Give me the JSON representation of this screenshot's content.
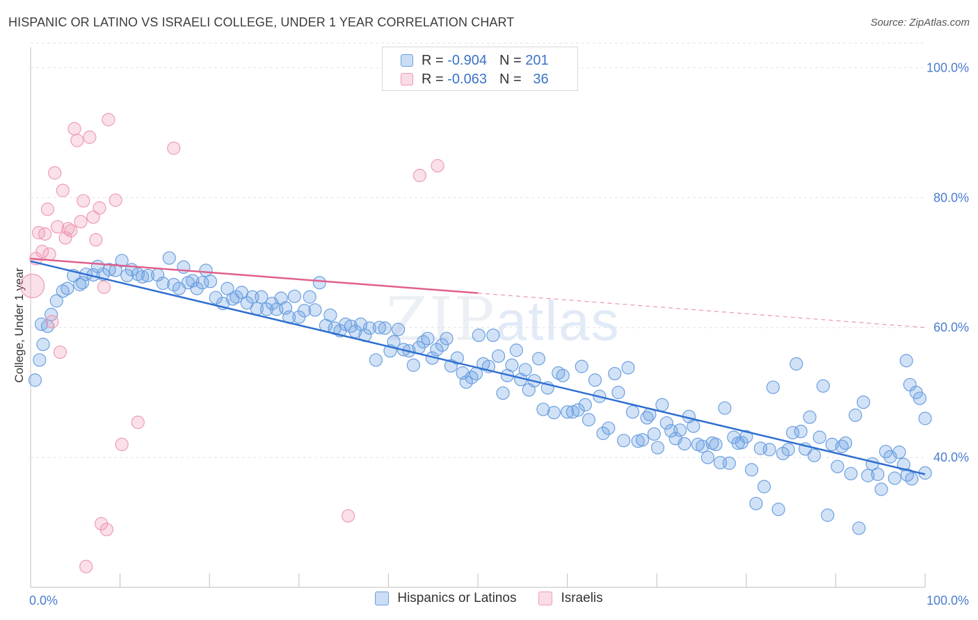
{
  "title": "HISPANIC OR LATINO VS ISRAELI COLLEGE, UNDER 1 YEAR CORRELATION CHART",
  "source": "Source: ZipAtlas.com",
  "watermark": {
    "part1": "ZIP",
    "part2": "atlas"
  },
  "legend": {
    "rows": [
      {
        "r_label": "R =",
        "r_value": "-0.904",
        "n_label": "N =",
        "n_value": "201",
        "color": "#6b9fe0"
      },
      {
        "r_label": "R =",
        "r_value": "-0.063",
        "n_label": "N =",
        "n_value": "36",
        "color": "#f09ab5"
      }
    ]
  },
  "chart_data": {
    "type": "scatter",
    "title": "HISPANIC OR LATINO VS ISRAELI COLLEGE, UNDER 1 YEAR CORRELATION CHART",
    "xlabel": "",
    "ylabel": "College, Under 1 year",
    "xlim": [
      0,
      100
    ],
    "ylim": [
      20,
      104
    ],
    "x_tick_labels": [
      "0.0%",
      "100.0%"
    ],
    "y_ticks": [
      40,
      60,
      80,
      100
    ],
    "y_tick_labels": [
      "40.0%",
      "60.0%",
      "80.0%",
      "100.0%"
    ],
    "grid": true,
    "legend_placement": "bottom-center",
    "series": [
      {
        "name": "Hispanics or Latinos",
        "color": "#6b9fe0",
        "trend": {
          "x": [
            0,
            100
          ],
          "y": [
            70.2,
            37.4
          ],
          "style": "solid"
        },
        "points": [
          [
            0.5,
            51.9
          ],
          [
            1.0,
            55.0
          ],
          [
            1.4,
            57.4
          ],
          [
            1.9,
            60.2
          ],
          [
            2.3,
            62.0
          ],
          [
            2.9,
            64.1
          ],
          [
            3.6,
            65.6
          ],
          [
            4.1,
            66.0
          ],
          [
            4.8,
            68.0
          ],
          [
            5.5,
            66.6
          ],
          [
            5.8,
            66.9
          ],
          [
            6.2,
            68.2
          ],
          [
            7.0,
            68.1
          ],
          [
            7.5,
            69.4
          ],
          [
            8.1,
            68.2
          ],
          [
            8.8,
            68.9
          ],
          [
            9.5,
            68.8
          ],
          [
            10.2,
            70.3
          ],
          [
            10.8,
            68.0
          ],
          [
            11.3,
            68.9
          ],
          [
            12.0,
            68.2
          ],
          [
            12.5,
            67.8
          ],
          [
            13.1,
            68.0
          ],
          [
            14.2,
            68.1
          ],
          [
            14.8,
            66.8
          ],
          [
            15.5,
            70.7
          ],
          [
            16.0,
            66.6
          ],
          [
            16.6,
            66.0
          ],
          [
            17.1,
            69.3
          ],
          [
            17.6,
            66.9
          ],
          [
            18.1,
            67.2
          ],
          [
            18.6,
            66.0
          ],
          [
            19.2,
            66.9
          ],
          [
            19.6,
            68.8
          ],
          [
            20.1,
            67.1
          ],
          [
            20.7,
            64.6
          ],
          [
            21.5,
            63.7
          ],
          [
            22.0,
            66.0
          ],
          [
            22.6,
            64.4
          ],
          [
            23.0,
            64.7
          ],
          [
            23.6,
            65.4
          ],
          [
            24.2,
            63.8
          ],
          [
            24.8,
            64.7
          ],
          [
            25.3,
            62.9
          ],
          [
            25.8,
            64.7
          ],
          [
            26.4,
            62.8
          ],
          [
            27.0,
            63.7
          ],
          [
            27.5,
            62.8
          ],
          [
            28.0,
            64.5
          ],
          [
            28.5,
            63.0
          ],
          [
            28.9,
            61.6
          ],
          [
            29.5,
            64.8
          ],
          [
            30.0,
            61.6
          ],
          [
            30.6,
            62.6
          ],
          [
            31.2,
            64.7
          ],
          [
            31.8,
            62.7
          ],
          [
            32.3,
            66.9
          ],
          [
            33.0,
            60.3
          ],
          [
            33.5,
            61.9
          ],
          [
            34.0,
            59.9
          ],
          [
            34.6,
            59.5
          ],
          [
            35.2,
            60.5
          ],
          [
            35.8,
            60.2
          ],
          [
            36.3,
            59.4
          ],
          [
            36.9,
            60.5
          ],
          [
            37.4,
            58.8
          ],
          [
            37.9,
            59.9
          ],
          [
            38.6,
            55.0
          ],
          [
            39.0,
            60.0
          ],
          [
            39.6,
            59.9
          ],
          [
            40.2,
            56.4
          ],
          [
            40.6,
            57.8
          ],
          [
            41.1,
            59.7
          ],
          [
            41.7,
            56.6
          ],
          [
            42.3,
            56.4
          ],
          [
            42.8,
            54.2
          ],
          [
            43.4,
            56.9
          ],
          [
            43.9,
            57.8
          ],
          [
            44.4,
            58.3
          ],
          [
            44.9,
            55.3
          ],
          [
            45.4,
            56.6
          ],
          [
            46.0,
            57.3
          ],
          [
            46.5,
            58.3
          ],
          [
            47.0,
            54.1
          ],
          [
            47.7,
            55.3
          ],
          [
            48.3,
            53.0
          ],
          [
            48.7,
            51.6
          ],
          [
            49.3,
            52.3
          ],
          [
            49.8,
            52.9
          ],
          [
            50.1,
            58.8
          ],
          [
            50.6,
            54.4
          ],
          [
            51.2,
            54.0
          ],
          [
            51.7,
            58.8
          ],
          [
            52.3,
            55.6
          ],
          [
            52.8,
            49.9
          ],
          [
            53.3,
            52.6
          ],
          [
            53.8,
            54.2
          ],
          [
            54.3,
            56.5
          ],
          [
            54.8,
            52.0
          ],
          [
            55.3,
            53.5
          ],
          [
            55.7,
            50.4
          ],
          [
            56.3,
            51.8
          ],
          [
            56.8,
            55.2
          ],
          [
            57.3,
            47.4
          ],
          [
            57.8,
            50.7
          ],
          [
            58.5,
            46.9
          ],
          [
            59.0,
            53.0
          ],
          [
            59.5,
            52.6
          ],
          [
            60.0,
            47.0
          ],
          [
            60.6,
            47.0
          ],
          [
            61.2,
            47.3
          ],
          [
            61.6,
            54.0
          ],
          [
            62.0,
            48.1
          ],
          [
            62.4,
            45.8
          ],
          [
            63.1,
            51.9
          ],
          [
            63.6,
            49.4
          ],
          [
            64.0,
            43.7
          ],
          [
            64.6,
            44.5
          ],
          [
            65.3,
            52.9
          ],
          [
            65.7,
            50.0
          ],
          [
            66.3,
            42.6
          ],
          [
            66.8,
            53.8
          ],
          [
            67.3,
            47.0
          ],
          [
            67.9,
            42.5
          ],
          [
            68.4,
            42.7
          ],
          [
            68.9,
            46.1
          ],
          [
            69.2,
            46.6
          ],
          [
            69.7,
            43.6
          ],
          [
            70.1,
            41.5
          ],
          [
            70.6,
            48.1
          ],
          [
            71.1,
            45.3
          ],
          [
            71.6,
            44.1
          ],
          [
            72.1,
            42.9
          ],
          [
            72.6,
            44.2
          ],
          [
            73.1,
            42.1
          ],
          [
            73.6,
            46.3
          ],
          [
            74.1,
            44.8
          ],
          [
            74.6,
            42.0
          ],
          [
            75.1,
            41.7
          ],
          [
            75.7,
            40.0
          ],
          [
            76.2,
            42.2
          ],
          [
            76.6,
            42.0
          ],
          [
            77.1,
            39.2
          ],
          [
            77.6,
            47.6
          ],
          [
            78.1,
            39.1
          ],
          [
            78.6,
            43.1
          ],
          [
            79.1,
            42.2
          ],
          [
            79.5,
            42.3
          ],
          [
            80.0,
            43.2
          ],
          [
            80.6,
            38.1
          ],
          [
            81.1,
            32.9
          ],
          [
            81.6,
            41.4
          ],
          [
            82.0,
            35.5
          ],
          [
            82.6,
            41.2
          ],
          [
            83.0,
            50.8
          ],
          [
            83.6,
            32.0
          ],
          [
            84.1,
            40.6
          ],
          [
            84.7,
            41.2
          ],
          [
            85.2,
            43.8
          ],
          [
            85.6,
            54.4
          ],
          [
            86.1,
            44.0
          ],
          [
            86.6,
            41.3
          ],
          [
            87.1,
            46.2
          ],
          [
            87.6,
            40.3
          ],
          [
            88.2,
            43.1
          ],
          [
            88.6,
            51.0
          ],
          [
            89.1,
            31.1
          ],
          [
            89.6,
            42.0
          ],
          [
            90.2,
            38.6
          ],
          [
            90.7,
            41.7
          ],
          [
            91.1,
            42.2
          ],
          [
            91.7,
            37.5
          ],
          [
            92.2,
            46.5
          ],
          [
            92.6,
            29.1
          ],
          [
            93.1,
            48.5
          ],
          [
            93.6,
            37.2
          ],
          [
            94.1,
            39.0
          ],
          [
            94.7,
            37.4
          ],
          [
            95.1,
            35.1
          ],
          [
            95.6,
            40.9
          ],
          [
            96.1,
            40.1
          ],
          [
            96.6,
            36.8
          ],
          [
            97.1,
            40.8
          ],
          [
            97.6,
            38.9
          ],
          [
            98.0,
            37.3
          ],
          [
            98.5,
            36.7
          ],
          [
            99.0,
            50.0
          ],
          [
            99.4,
            49.1
          ],
          [
            100.0,
            46.0
          ],
          [
            97.9,
            54.9
          ],
          [
            98.3,
            51.2
          ],
          [
            100.0,
            37.6
          ],
          [
            1.2,
            60.5
          ]
        ]
      },
      {
        "name": "Israelis",
        "color": "#f09ab5",
        "trend": {
          "x": [
            0,
            50
          ],
          "y": [
            70.6,
            65.3
          ],
          "style": "solid",
          "extended_x": [
            50,
            100
          ],
          "extended_y": [
            65.3,
            60.0
          ],
          "extended_style": "dashed"
        },
        "points": [
          [
            0.2,
            66.4
          ],
          [
            0.6,
            70.6
          ],
          [
            0.9,
            74.6
          ],
          [
            1.3,
            71.7
          ],
          [
            1.6,
            74.4
          ],
          [
            1.9,
            78.2
          ],
          [
            2.1,
            71.3
          ],
          [
            2.4,
            60.9
          ],
          [
            2.7,
            83.8
          ],
          [
            3.0,
            75.5
          ],
          [
            3.3,
            56.2
          ],
          [
            3.6,
            81.1
          ],
          [
            3.9,
            73.8
          ],
          [
            4.2,
            75.2
          ],
          [
            4.5,
            74.9
          ],
          [
            4.9,
            90.6
          ],
          [
            5.2,
            88.8
          ],
          [
            5.6,
            76.3
          ],
          [
            5.9,
            79.5
          ],
          [
            6.6,
            89.3
          ],
          [
            6.2,
            23.2
          ],
          [
            7.0,
            77.0
          ],
          [
            7.3,
            73.5
          ],
          [
            7.7,
            78.4
          ],
          [
            8.2,
            66.2
          ],
          [
            7.9,
            29.8
          ],
          [
            8.5,
            28.9
          ],
          [
            8.7,
            92.0
          ],
          [
            9.5,
            79.6
          ],
          [
            10.2,
            42.0
          ],
          [
            12.0,
            45.4
          ],
          [
            16.0,
            87.6
          ],
          [
            35.5,
            31.0
          ],
          [
            43.5,
            83.4
          ],
          [
            45.5,
            84.9
          ]
        ]
      }
    ]
  },
  "bottom_legend": [
    {
      "label": "Hispanics or Latinos",
      "color": "#6b9fe0"
    },
    {
      "label": "Israelis",
      "color": "#f09ab5"
    }
  ]
}
